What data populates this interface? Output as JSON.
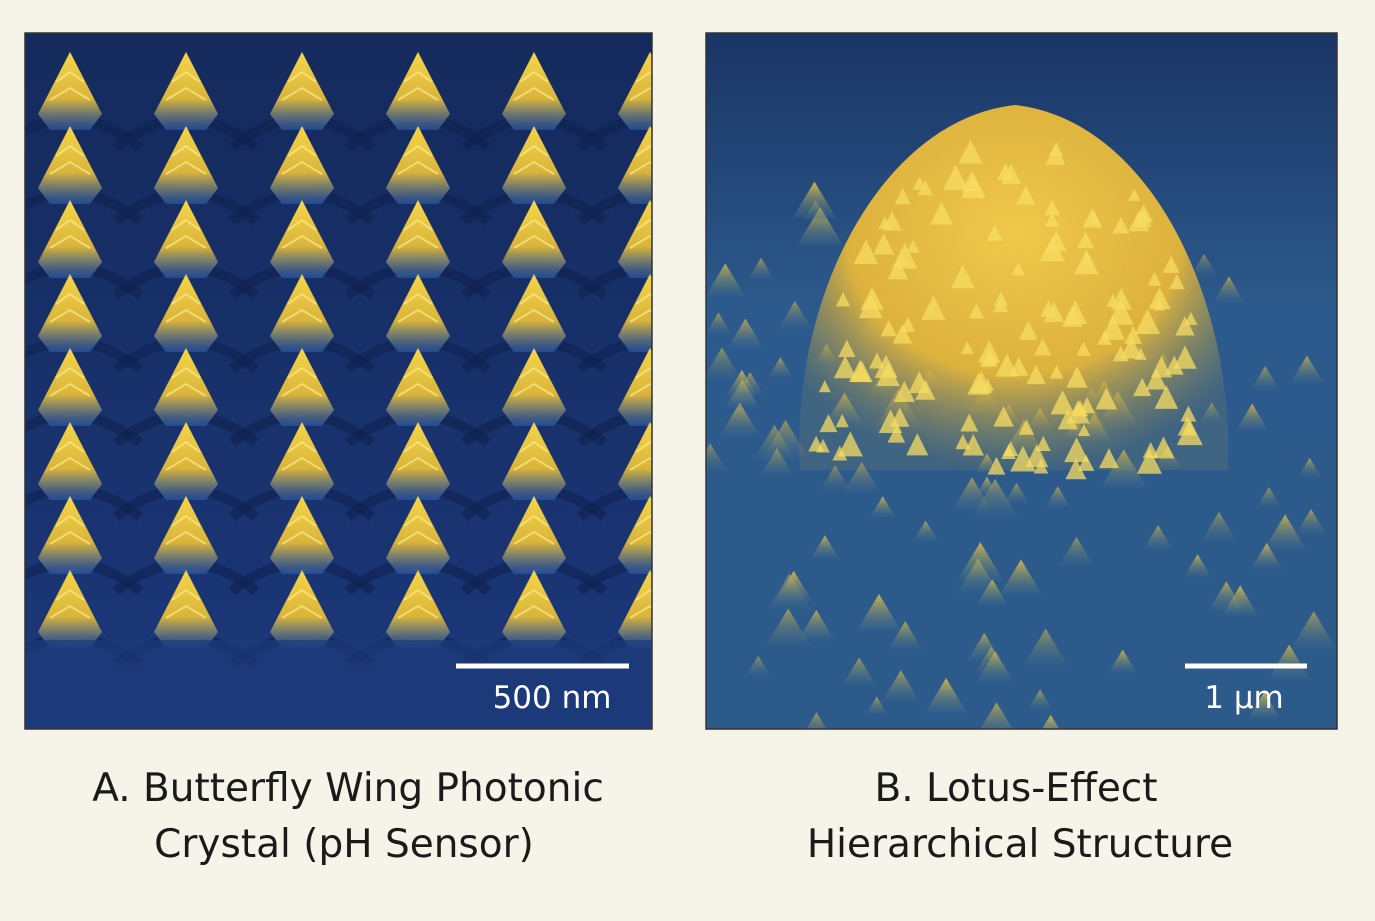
{
  "panels": [
    {
      "scale_bar": "500 nm",
      "caption": [
        "A. Butterfly Wing Photonic",
        "Crystal (pH Sensor)"
      ]
    },
    {
      "scale_bar": "1 μm",
      "caption": [
        "B. Lotus-Effect",
        "Hierarchical Structure"
      ]
    }
  ]
}
